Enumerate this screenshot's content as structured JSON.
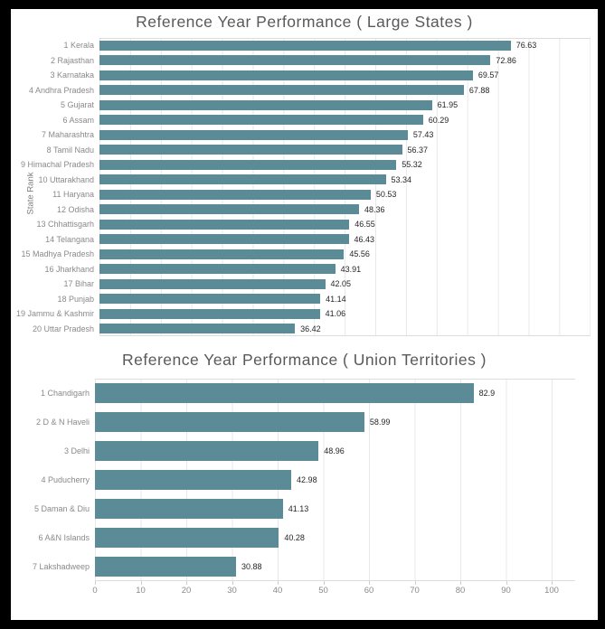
{
  "window": {
    "background": "#ffffff",
    "frame_color": "#000000"
  },
  "chart_data": [
    {
      "type": "bar",
      "orientation": "horizontal",
      "title": "Reference Year Performance ( Large States )",
      "ylabel": "State Rank",
      "xlabel": "",
      "legend": "none",
      "grid": "vertical",
      "bar_color": "#5b8b96",
      "xlim": [
        0,
        91.5
      ],
      "x_axis_visible": false,
      "categories": [
        "1 Kerala",
        "2 Rajasthan",
        "3 Karnataka",
        "4 Andhra Pradesh",
        "5 Gujarat",
        "6 Assam",
        "7 Maharashtra",
        "8 Tamil Nadu",
        "9 Himachal Pradesh",
        "10 Uttarakhand",
        "11 Haryana",
        "12 Odisha",
        "13 Chhattisgarh",
        "14 Telangana",
        "15 Madhya Pradesh",
        "16 Jharkhand",
        "17 Bihar",
        "18 Punjab",
        "19 Jammu & Kashmir",
        "20 Uttar Pradesh"
      ],
      "values": [
        76.63,
        72.86,
        69.57,
        67.88,
        61.95,
        60.29,
        57.43,
        56.37,
        55.32,
        53.34,
        50.53,
        48.36,
        46.55,
        46.43,
        45.56,
        43.91,
        42.05,
        41.14,
        41.06,
        36.42
      ],
      "value_labels": [
        "76.63",
        "72.86",
        "69.57",
        "67.88",
        "61.95",
        "60.29",
        "57.43",
        "56.37",
        "55.32",
        "53.34",
        "50.53",
        "48.36",
        "46.55",
        "46.43",
        "45.56",
        "43.91",
        "42.05",
        "41.14",
        "41.06",
        "36.42"
      ]
    },
    {
      "type": "bar",
      "orientation": "horizontal",
      "title": "Reference Year Performance ( Union Territories )",
      "ylabel": "",
      "xlabel": "",
      "legend": "none",
      "grid": "vertical",
      "bar_color": "#5b8b96",
      "xlim": [
        0,
        100
      ],
      "x_ticks": [
        "0",
        "10",
        "20",
        "30",
        "40",
        "50",
        "60",
        "70",
        "80",
        "90",
        "100"
      ],
      "categories": [
        "1 Chandigarh",
        "2 D & N Haveli",
        "3 Delhi",
        "4 Puducherry",
        "5 Daman & Diu",
        "6 A&N Islands",
        "7 Lakshadweep"
      ],
      "values": [
        82.9,
        58.99,
        48.96,
        42.98,
        41.13,
        40.28,
        30.88
      ],
      "value_labels": [
        "82.9",
        "58.99",
        "48.96",
        "42.98",
        "41.13",
        "40.28",
        "30.88"
      ]
    }
  ]
}
